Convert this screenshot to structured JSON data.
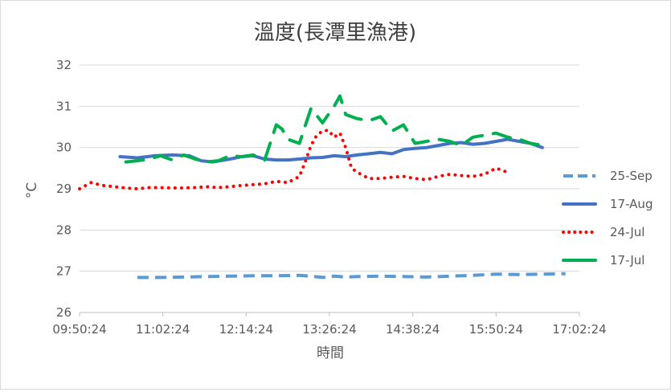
{
  "chart_data": {
    "type": "line",
    "title": "溫度(長潭里漁港)",
    "xlabel": "時間",
    "ylabel": "°C",
    "ylim": [
      26,
      32
    ],
    "yticks": [
      26,
      27,
      28,
      29,
      30,
      31,
      32
    ],
    "xlim": [
      "09:50:24",
      "17:02:24"
    ],
    "xticks": [
      "09:50:24",
      "11:02:24",
      "12:14:24",
      "13:26:24",
      "14:38:24",
      "15:50:24",
      "17:02:24"
    ],
    "grid": true,
    "legend": "right",
    "series": [
      {
        "name": "25-Sep",
        "color": "#5b9bd5",
        "style": "dash",
        "x": [
          "10:40:24",
          "10:50:24",
          "11:00:24",
          "11:20:24",
          "11:40:24",
          "12:00:24",
          "12:20:24",
          "12:40:24",
          "13:00:24",
          "13:10:24",
          "13:20:24",
          "13:30:24",
          "13:40:24",
          "13:50:24",
          "14:10:24",
          "14:30:24",
          "14:50:24",
          "15:10:24",
          "15:30:24",
          "15:50:24",
          "16:10:24",
          "16:30:24",
          "16:50:24"
        ],
        "values": [
          26.85,
          26.85,
          26.85,
          26.86,
          26.87,
          26.88,
          26.89,
          26.89,
          26.9,
          26.88,
          26.85,
          26.88,
          26.86,
          26.87,
          26.88,
          26.87,
          26.86,
          26.88,
          26.9,
          26.93,
          26.92,
          26.93,
          26.94
        ]
      },
      {
        "name": "17-Aug",
        "color": "#4472c4",
        "style": "solid",
        "x": [
          "10:25:24",
          "10:40:24",
          "10:55:24",
          "11:10:24",
          "11:25:24",
          "11:35:24",
          "11:45:24",
          "12:00:24",
          "12:10:24",
          "12:20:24",
          "12:30:24",
          "12:40:24",
          "12:50:24",
          "13:00:24",
          "13:10:24",
          "13:20:24",
          "13:30:24",
          "13:40:24",
          "13:50:24",
          "14:00:24",
          "14:10:24",
          "14:20:24",
          "14:30:24",
          "14:40:24",
          "14:50:24",
          "15:00:24",
          "15:10:24",
          "15:20:24",
          "15:30:24",
          "15:40:24",
          "15:50:24",
          "16:00:24",
          "16:10:24",
          "16:20:24",
          "16:30:24"
        ],
        "values": [
          29.78,
          29.75,
          29.8,
          29.82,
          29.8,
          29.68,
          29.65,
          29.72,
          29.78,
          29.8,
          29.72,
          29.7,
          29.7,
          29.72,
          29.75,
          29.76,
          29.8,
          29.78,
          29.82,
          29.85,
          29.88,
          29.85,
          29.95,
          29.98,
          30.0,
          30.05,
          30.1,
          30.12,
          30.08,
          30.1,
          30.15,
          30.2,
          30.15,
          30.1,
          30.0
        ]
      },
      {
        "name": "24-Jul",
        "color": "#ff0000",
        "style": "dot",
        "x": [
          "09:50:24",
          "10:00:24",
          "10:10:24",
          "10:20:24",
          "10:30:24",
          "10:40:24",
          "10:50:24",
          "11:00:24",
          "11:10:24",
          "11:20:24",
          "11:30:24",
          "11:40:24",
          "11:50:24",
          "12:00:24",
          "12:10:24",
          "12:20:24",
          "12:30:24",
          "12:40:24",
          "12:50:24",
          "13:00:24",
          "13:05:24",
          "13:10:24",
          "13:15:24",
          "13:20:24",
          "13:25:24",
          "13:30:24",
          "13:35:24",
          "13:40:24",
          "13:45:24",
          "13:50:24",
          "14:00:24",
          "14:10:24",
          "14:20:24",
          "14:30:24",
          "14:40:24",
          "14:50:24",
          "15:00:24",
          "15:10:24",
          "15:20:24",
          "15:30:24",
          "15:40:24",
          "15:50:24",
          "16:00:24"
        ],
        "values": [
          29.0,
          29.15,
          29.08,
          29.05,
          29.02,
          29.0,
          29.03,
          29.03,
          29.02,
          29.02,
          29.03,
          29.05,
          29.03,
          29.05,
          29.08,
          29.1,
          29.12,
          29.18,
          29.15,
          29.3,
          29.65,
          30.05,
          30.3,
          30.4,
          30.42,
          30.25,
          30.35,
          30.0,
          29.5,
          29.4,
          29.25,
          29.25,
          29.28,
          29.3,
          29.25,
          29.22,
          29.3,
          29.35,
          29.32,
          29.3,
          29.35,
          29.5,
          29.4
        ]
      },
      {
        "name": "17-Jul",
        "color": "#00b050",
        "style": "solid-broken",
        "x": [
          "10:30:24",
          "10:40:24",
          "10:50:24",
          "11:00:24",
          "11:10:24",
          "11:20:24",
          "11:30:24",
          "11:40:24",
          "11:50:24",
          "12:00:24",
          "12:10:24",
          "12:20:24",
          "12:30:24",
          "12:40:24",
          "12:45:24",
          "12:50:24",
          "13:00:24",
          "13:10:24",
          "13:20:24",
          "13:30:24",
          "13:35:24",
          "13:40:24",
          "13:50:24",
          "14:00:24",
          "14:10:24",
          "14:20:24",
          "14:30:24",
          "14:40:24",
          "14:50:24",
          "15:00:24",
          "15:10:24",
          "15:20:24",
          "15:30:24",
          "15:40:24",
          "15:50:24",
          "16:00:24",
          "16:10:24",
          "16:20:24",
          "16:30:24"
        ],
        "values": [
          29.65,
          29.68,
          29.72,
          29.8,
          29.7,
          29.82,
          29.72,
          29.65,
          29.68,
          29.8,
          29.78,
          29.82,
          29.7,
          30.55,
          30.45,
          30.2,
          30.1,
          30.95,
          30.6,
          31.0,
          31.25,
          30.8,
          30.7,
          30.65,
          30.75,
          30.4,
          30.55,
          30.1,
          30.15,
          30.2,
          30.15,
          30.05,
          30.25,
          30.3,
          30.35,
          30.25,
          30.2,
          30.1,
          30.05
        ]
      }
    ]
  }
}
